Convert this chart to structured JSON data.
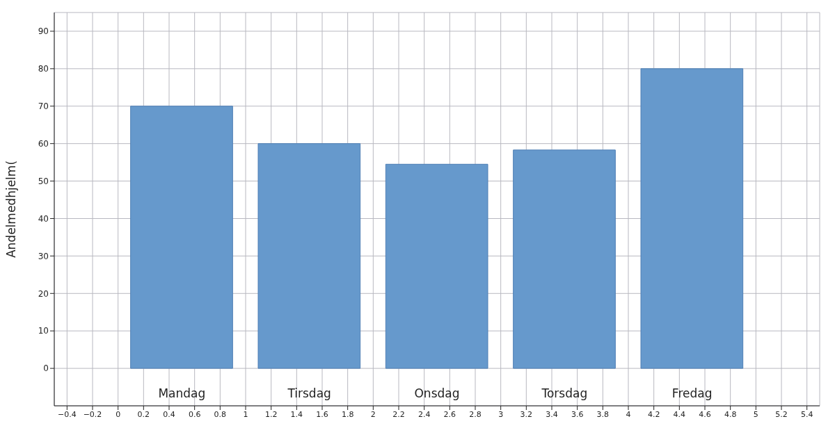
{
  "chart_data": {
    "type": "bar",
    "ylabel": "Andelmedhjelm(",
    "x": [
      0.5,
      1.5,
      2.5,
      3.5,
      4.5
    ],
    "values": [
      70,
      60,
      54.5,
      58.3,
      80
    ],
    "color": "#6699cc",
    "xlim": [
      -0.5,
      5.5
    ],
    "xticks": [
      -0.4,
      -0.2,
      0,
      0.2,
      0.4,
      0.6,
      0.8,
      1,
      1.2,
      1.4,
      1.6,
      1.8,
      2,
      2.2,
      2.4,
      2.6,
      2.8,
      3,
      3.2,
      3.4,
      3.6,
      3.8,
      4,
      4.2,
      4.4,
      4.6,
      4.8,
      5,
      5.2,
      5.4
    ],
    "ylim": [
      -10,
      95
    ],
    "yticks": [
      0,
      10,
      20,
      30,
      40,
      50,
      60,
      70,
      80,
      90
    ],
    "grid": true,
    "annotations": [
      "Mandag",
      "Tirsdag",
      "Onsdag",
      "Torsdag",
      "Fredag"
    ]
  }
}
